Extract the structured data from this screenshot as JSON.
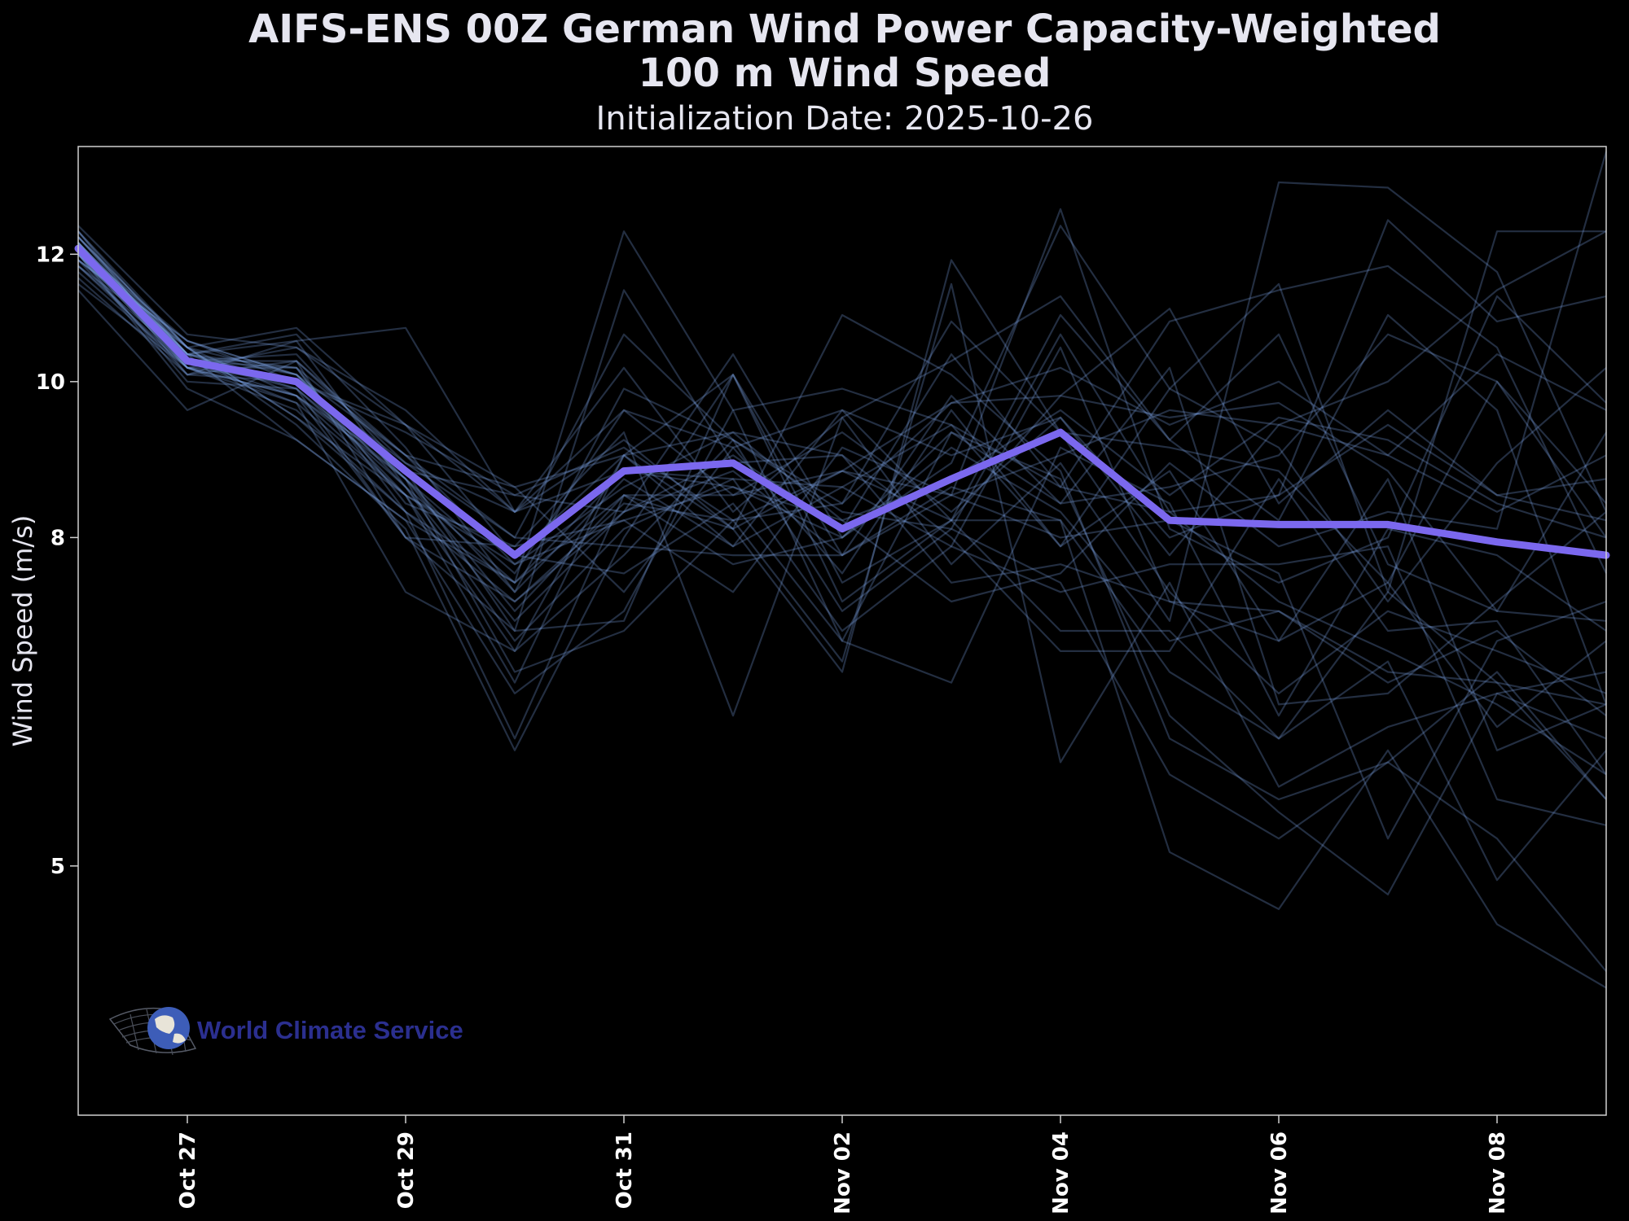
{
  "title_line1": "AIFS-ENS 00Z German Wind Power Capacity-Weighted",
  "title_line2": "100 m Wind Speed",
  "subtitle": "Initialization Date: 2025-10-26",
  "logo_text": "World Climate Service",
  "colors": {
    "background": "#000000",
    "mean": "#7b68ee",
    "members": "#7fa6e8",
    "axes": "#d0d0d0"
  },
  "chart_data": {
    "type": "line",
    "title": "AIFS-ENS 00Z German Wind Power Capacity-Weighted 100 m Wind Speed",
    "subtitle": "Initialization Date: 2025-10-26",
    "xlabel": "",
    "ylabel": "Wind Speed (m/s)",
    "x": [
      "2025-10-26",
      "2025-10-27",
      "2025-10-28",
      "2025-10-29",
      "2025-10-30",
      "2025-10-31",
      "2025-11-01",
      "2025-11-02",
      "2025-11-03",
      "2025-11-04",
      "2025-11-05",
      "2025-11-06",
      "2025-11-07",
      "2025-11-08",
      "2025-11-09"
    ],
    "xlim": [
      "2025-10-26",
      "2025-11-09"
    ],
    "x_ticks": [
      "Oct 27",
      "Oct 29",
      "Oct 31",
      "Nov 02",
      "Nov 04",
      "Nov 06",
      "Nov 08"
    ],
    "x_tick_dates": [
      "2025-10-27",
      "2025-10-29",
      "2025-10-31",
      "2025-11-02",
      "2025-11-04",
      "2025-11-06",
      "2025-11-08"
    ],
    "y_ticks": [
      "5",
      "8",
      "10",
      "12"
    ],
    "y_scale": "log",
    "ylim": [
      3.5,
      14
    ],
    "grid": false,
    "legend": "none",
    "mean": {
      "name": "ensemble mean",
      "values": [
        12.1,
        10.3,
        10.0,
        8.8,
        7.8,
        8.8,
        8.9,
        8.1,
        8.7,
        9.3,
        8.2,
        8.15,
        8.15,
        7.95,
        7.8
      ]
    },
    "members": [
      [
        12.5,
        10.7,
        10.5,
        9.6,
        8.3,
        9.6,
        8.5,
        8.8,
        9.7,
        10.2,
        9.4,
        10.0,
        9.0,
        8.3,
        9.0
      ],
      [
        12.4,
        10.5,
        10.8,
        9.4,
        8.6,
        9.0,
        9.3,
        8.2,
        8.7,
        9.6,
        8.5,
        9.5,
        9.2,
        8.4,
        8.0
      ],
      [
        12.3,
        10.4,
        10.1,
        9.0,
        8.0,
        10.7,
        9.2,
        8.4,
        10.9,
        9.3,
        9.1,
        8.8,
        7.5,
        10.0,
        8.0
      ],
      [
        12.3,
        10.3,
        9.8,
        8.7,
        7.2,
        8.5,
        7.7,
        8.0,
        9.1,
        8.3,
        6.9,
        7.2,
        6.5,
        7.0,
        6.2
      ],
      [
        12.2,
        10.4,
        10.0,
        8.5,
        6.8,
        9.0,
        10.1,
        7.5,
        8.2,
        8.2,
        6.6,
        6.0,
        7.4,
        6.5,
        5.5
      ],
      [
        12.2,
        10.2,
        10.2,
        8.3,
        7.5,
        8.5,
        8.5,
        9.3,
        8.3,
        9.5,
        7.8,
        9.4,
        9.0,
        10.4,
        9.6
      ],
      [
        12.1,
        10.4,
        10.6,
        8.6,
        7.5,
        12.4,
        9.6,
        9.9,
        9.4,
        7.9,
        8.8,
        6.9,
        8.7,
        5.9,
        6.3
      ],
      [
        12.1,
        10.5,
        9.5,
        8.3,
        6.0,
        8.5,
        8.1,
        6.6,
        11.9,
        9.3,
        7.4,
        6.4,
        7.2,
        6.8,
        6.4
      ],
      [
        12.0,
        10.3,
        10.3,
        9.0,
        7.7,
        8.2,
        7.4,
        9.1,
        8.5,
        12.8,
        8.1,
        7.5,
        8.0,
        11.3,
        9.7
      ],
      [
        12.0,
        10.2,
        9.8,
        8.0,
        7.0,
        7.1,
        10.1,
        7.3,
        8.2,
        7.0,
        7.0,
        6.0,
        6.7,
        4.9,
        5.9
      ],
      [
        11.9,
        10.6,
        10.0,
        9.3,
        8.5,
        8.3,
        8.8,
        7.8,
        9.8,
        8.4,
        10.2,
        6.3,
        6.4,
        7.3,
        8.3
      ],
      [
        11.9,
        10.1,
        10.3,
        8.0,
        7.3,
        8.4,
        8.2,
        8.8,
        8.2,
        11.0,
        9.2,
        8.2,
        11.0,
        9.6,
        6.3
      ],
      [
        11.8,
        10.3,
        9.9,
        8.7,
        6.6,
        7.0,
        8.2,
        6.7,
        11.5,
        5.8,
        7.5,
        5.6,
        6.1,
        6.4,
        6.6
      ],
      [
        11.8,
        10.2,
        9.8,
        8.5,
        7.8,
        9.0,
        7.9,
        9.6,
        9.0,
        9.5,
        8.0,
        8.5,
        9.4,
        8.5,
        8.7
      ],
      [
        12.0,
        10.4,
        10.7,
        9.1,
        7.4,
        8.7,
        7.9,
        8.6,
        7.9,
        10.5,
        7.3,
        6.9,
        7.5,
        6.1,
        6.9
      ],
      [
        12.2,
        10.3,
        10.2,
        8.4,
        7.9,
        8.2,
        8.6,
        8.0,
        8.9,
        12.5,
        9.9,
        11.5,
        7.4,
        12.4,
        12.4
      ],
      [
        11.7,
        10.2,
        9.6,
        8.3,
        7.3,
        8.3,
        9.0,
        8.1,
        10.4,
        8.6,
        8.3,
        7.3,
        6.8,
        6.3,
        5.7
      ],
      [
        12.1,
        10.6,
        10.1,
        8.7,
        7.6,
        9.6,
        9.1,
        9.6,
        8.2,
        9.8,
        9.5,
        9.7,
        8.8,
        7.2,
        9.3
      ],
      [
        11.4,
        9.6,
        10.3,
        8.9,
        8.3,
        8.8,
        8.7,
        7.0,
        7.9,
        7.4,
        7.7,
        7.7,
        7.9,
        5.5,
        5.3
      ],
      [
        11.5,
        10.2,
        9.7,
        7.4,
        6.8,
        7.8,
        9.2,
        7.2,
        8.1,
        7.5,
        5.7,
        5.2,
        5.8,
        5.2,
        4.3
      ],
      [
        12.3,
        10.5,
        9.4,
        8.1,
        5.9,
        8.0,
        10.1,
        7.8,
        8.5,
        8.0,
        8.2,
        7.6,
        5.2,
        6.9,
        7.3
      ],
      [
        12.4,
        10.4,
        10.2,
        9.0,
        8.6,
        7.4,
        9.1,
        7.6,
        9.6,
        7.9,
        9.9,
        9.1,
        7.3,
        8.9,
        10.2
      ],
      [
        12.0,
        9.9,
        9.2,
        8.2,
        6.4,
        7.2,
        9.6,
        6.9,
        9.3,
        8.7,
        6.2,
        5.4,
        4.8,
        6.4,
        6.0
      ],
      [
        11.9,
        10.5,
        9.8,
        8.8,
        8.5,
        9.1,
        8.2,
        8.4,
        9.7,
        9.8,
        11.1,
        8.4,
        9.6,
        8.5,
        8.2
      ],
      [
        12.2,
        10.1,
        10.6,
        10.8,
        8.3,
        10.2,
        8.3,
        9.5,
        10.3,
        11.3,
        9.2,
        10.7,
        7.7,
        7.2,
        7.1
      ],
      [
        12.1,
        10.3,
        10.4,
        8.8,
        7.0,
        11.4,
        8.9,
        9.0,
        7.5,
        7.7,
        7.3,
        7.2,
        6.6,
        6.5,
        6.3
      ],
      [
        11.6,
        10.1,
        10.0,
        9.4,
        8.3,
        9.2,
        8.1,
        8.8,
        8.5,
        9.0,
        9.6,
        9.4,
        10.0,
        11.4,
        12.4
      ],
      [
        12.3,
        10.5,
        9.5,
        8.5,
        6.5,
        9.0,
        8.1,
        11.0,
        10.1,
        8.8,
        6.0,
        5.5,
        5.8,
        6.6,
        5.5
      ],
      [
        12.0,
        10.0,
        9.9,
        8.0,
        7.9,
        9.3,
        6.2,
        9.5,
        7.7,
        8.9,
        7.1,
        13.3,
        13.2,
        11.7,
        8.3
      ],
      [
        12.4,
        10.2,
        10.5,
        9.4,
        7.8,
        7.6,
        8.4,
        6.9,
        6.5,
        9.1,
        8.4,
        6.2,
        8.1,
        7.8,
        7.0
      ],
      [
        11.8,
        10.5,
        10.1,
        8.6,
        7.1,
        8.3,
        10.4,
        8.0,
        9.3,
        8.4,
        8.6,
        9.0,
        10.7,
        10.0,
        8.4
      ],
      [
        12.2,
        10.4,
        9.2,
        8.2,
        7.5,
        8.8,
        8.6,
        8.2,
        7.3,
        7.6,
        8.9,
        7.9,
        8.3,
        8.1,
        13.9
      ],
      [
        11.9,
        10.6,
        10.1,
        8.7,
        7.4,
        9.9,
        9.2,
        8.3,
        8.1,
        10.7,
        8.3,
        8.5,
        12.6,
        10.9,
        11.3
      ],
      [
        12.1,
        10.3,
        9.7,
        8.5,
        7.7,
        8.6,
        9.3,
        9.0,
        8.0,
        6.8,
        6.8,
        8.7,
        7.0,
        7.1,
        5.7
      ],
      [
        12.0,
        10.2,
        10.0,
        8.9,
        8.0,
        7.9,
        7.8,
        7.8,
        8.6,
        8.2,
        5.1,
        4.7,
        5.9,
        4.6,
        4.2
      ],
      [
        12.2,
        10.4,
        9.9,
        8.6,
        6.9,
        8.1,
        8.7,
        8.6,
        9.4,
        8.6,
        10.9,
        11.4,
        11.8,
        10.5,
        7.6
      ]
    ]
  }
}
